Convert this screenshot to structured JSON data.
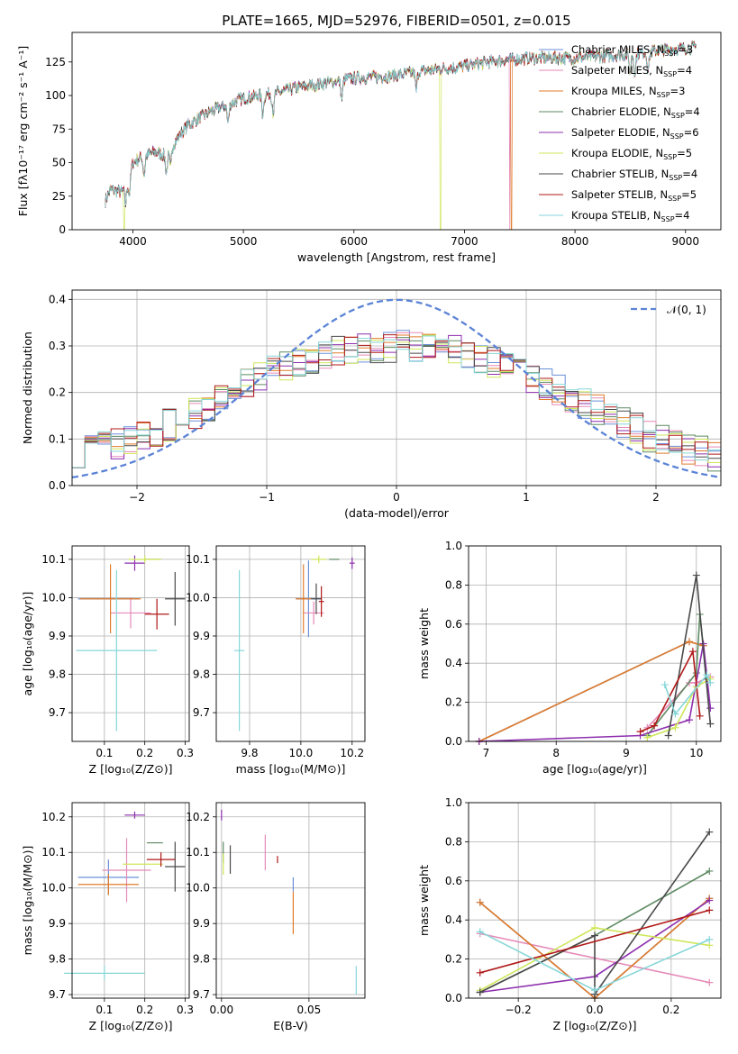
{
  "title": "PLATE=1665, MJD=52976, FIBERID=0501, z=0.015",
  "colors": {
    "Chabrier MILES": "#6a8fd8",
    "Salpeter MILES": "#e58ab8",
    "Kroupa MILES": "#e07b2a",
    "Chabrier ELODIE": "#5e8a62",
    "Salpeter ELODIE": "#8e2fae",
    "Kroupa ELODIE": "#cfe65a",
    "Chabrier STELIB": "#4a4a4a",
    "Salpeter STELIB": "#b01818",
    "Kroupa STELIB": "#86d6d8",
    "normal": "#5b83d6"
  },
  "chart_data": [
    {
      "type": "line",
      "name": "spectrum",
      "xlabel": "wavelength [Angstrom, rest frame]",
      "ylabel": "Flux [fλ10⁻¹⁷ erg cm⁻² s⁻¹ A⁻¹]",
      "xlim": [
        3450,
        9320
      ],
      "ylim": [
        0,
        147
      ],
      "xticks": [
        4000,
        5000,
        6000,
        7000,
        8000,
        9000
      ],
      "yticks": [
        0,
        25,
        50,
        75,
        100,
        125
      ],
      "grid": false,
      "legend": "top-right",
      "continuum": {
        "x": [
          3750,
          3800,
          3900,
          3950,
          4000,
          4100,
          4200,
          4300,
          4400,
          4500,
          4700,
          5000,
          5300,
          5500,
          5800,
          6000,
          6300,
          6600,
          7000,
          7300,
          7600,
          8000,
          8400,
          8800,
          9100
        ],
        "y": [
          22,
          30,
          28,
          35,
          50,
          55,
          58,
          55,
          68,
          78,
          88,
          98,
          102,
          106,
          110,
          113,
          114,
          118,
          122,
          126,
          128,
          128,
          130,
          134,
          136
        ]
      },
      "dropouts": [
        {
          "series": "Kroupa ELODIE",
          "x": 6785
        },
        {
          "series": "Salpeter MILES",
          "x": 7410
        },
        {
          "series": "Kroupa MILES",
          "x": 7425
        },
        {
          "series": "Kroupa ELODIE",
          "x": 3920
        }
      ],
      "series": [
        {
          "name": "Chabrier MILES",
          "label": "Chabrier MILES, N",
          "nssp": "=3"
        },
        {
          "name": "Salpeter MILES",
          "label": "Salpeter MILES, N",
          "nssp": "=4"
        },
        {
          "name": "Kroupa MILES",
          "label": "Kroupa MILES, N",
          "nssp": "=3"
        },
        {
          "name": "Chabrier ELODIE",
          "label": "Chabrier ELODIE, N",
          "nssp": "=4"
        },
        {
          "name": "Salpeter ELODIE",
          "label": "Salpeter ELODIE, N",
          "nssp": "=6"
        },
        {
          "name": "Kroupa ELODIE",
          "label": "Kroupa ELODIE, N",
          "nssp": "=5"
        },
        {
          "name": "Chabrier STELIB",
          "label": "Chabrier STELIB, N",
          "nssp": "=4"
        },
        {
          "name": "Salpeter STELIB",
          "label": "Salpeter STELIB, N",
          "nssp": "=5"
        },
        {
          "name": "Kroupa STELIB",
          "label": "Kroupa STELIB, N",
          "nssp": "=4"
        }
      ],
      "sub": "SSP"
    },
    {
      "type": "line",
      "name": "residual-histogram",
      "xlabel": "(data-model)/error",
      "ylabel": "Normed distribution",
      "xlim": [
        -2.5,
        2.5
      ],
      "ylim": [
        0,
        0.42
      ],
      "xticks": [
        -2,
        -1,
        0,
        1,
        2
      ],
      "yticks": [
        0.0,
        0.1,
        0.2,
        0.3,
        0.4
      ],
      "grid": true,
      "legend": "top-right",
      "normal_label": "𝒩(0, 1)",
      "bin_width": 0.1,
      "envelope": {
        "x": [
          -2.5,
          -2.0,
          -1.5,
          -1.0,
          -0.5,
          0.0,
          0.5,
          1.0,
          1.5,
          2.0,
          2.5
        ],
        "y": [
          0.07,
          0.1,
          0.16,
          0.24,
          0.29,
          0.3,
          0.29,
          0.24,
          0.17,
          0.1,
          0.06
        ]
      }
    },
    {
      "type": "scatter",
      "name": "age-vs-Z",
      "xlabel": "Z [log₁₀(Z/Z⊙)]",
      "ylabel": "age  [log₁₀(age/yr)]",
      "xlim": [
        0.02,
        0.31
      ],
      "ylim": [
        9.625,
        10.135
      ],
      "xticks": [
        0.1,
        0.2,
        0.3
      ],
      "yticks": [
        9.7,
        9.8,
        9.9,
        10.0,
        10.1
      ],
      "grid": true,
      "points": [
        {
          "series": "Chabrier MILES",
          "x": 0.11,
          "y": 9.997,
          "xerr": 0.075,
          "yerr": 0.0
        },
        {
          "series": "Salpeter MILES",
          "x": 0.165,
          "y": 9.96,
          "xerr": 0.05,
          "yerr": 0.04
        },
        {
          "series": "Kroupa MILES",
          "x": 0.115,
          "y": 9.997,
          "xerr": 0.075,
          "yerr": 0.09
        },
        {
          "series": "Chabrier ELODIE",
          "x": 0.22,
          "y": 10.1,
          "xerr": 0.02,
          "yerr": 0.0
        },
        {
          "series": "Salpeter ELODIE",
          "x": 0.175,
          "y": 10.09,
          "xerr": 0.025,
          "yerr": 0.02
        },
        {
          "series": "Kroupa ELODIE",
          "x": 0.2,
          "y": 10.1,
          "xerr": 0.04,
          "yerr": 0.01
        },
        {
          "series": "Chabrier STELIB",
          "x": 0.275,
          "y": 9.997,
          "xerr": 0.025,
          "yerr": 0.07
        },
        {
          "series": "Salpeter STELIB",
          "x": 0.23,
          "y": 9.957,
          "xerr": 0.03,
          "yerr": 0.04
        },
        {
          "series": "Kroupa STELIB",
          "x": 0.13,
          "y": 9.862,
          "xerr": 0.1,
          "yerr": 0.21
        }
      ]
    },
    {
      "type": "scatter",
      "name": "age-vs-mass",
      "xlabel": "mass [log₁₀(M/M⊙)]",
      "ylabel": "",
      "xlim": [
        9.67,
        10.25
      ],
      "ylim": [
        9.625,
        10.135
      ],
      "xticks": [
        9.8,
        10.0,
        10.2
      ],
      "yticks": [
        9.7,
        9.8,
        9.9,
        10.0,
        10.1
      ],
      "grid": true,
      "points": [
        {
          "series": "Chabrier MILES",
          "x": 10.03,
          "y": 9.997,
          "xerr": 0.05,
          "yerr": 0.1
        },
        {
          "series": "Salpeter MILES",
          "x": 10.05,
          "y": 9.96,
          "xerr": 0.04,
          "yerr": 0.03
        },
        {
          "series": "Kroupa MILES",
          "x": 10.01,
          "y": 9.997,
          "xerr": 0.03,
          "yerr": 0.09
        },
        {
          "series": "Chabrier ELODIE",
          "x": 10.13,
          "y": 10.1,
          "xerr": 0.02,
          "yerr": 0.0
        },
        {
          "series": "Salpeter ELODIE",
          "x": 10.2,
          "y": 10.09,
          "xerr": 0.01,
          "yerr": 0.015
        },
        {
          "series": "Kroupa ELODIE",
          "x": 10.07,
          "y": 10.1,
          "xerr": 0.03,
          "yerr": 0.01
        },
        {
          "series": "Chabrier STELIB",
          "x": 10.06,
          "y": 9.997,
          "xerr": 0.02,
          "yerr": 0.04
        },
        {
          "series": "Salpeter STELIB",
          "x": 10.08,
          "y": 9.99,
          "xerr": 0.01,
          "yerr": 0.04
        },
        {
          "series": "Kroupa STELIB",
          "x": 9.76,
          "y": 9.862,
          "xerr": 0.02,
          "yerr": 0.21
        }
      ]
    },
    {
      "type": "line",
      "name": "mass-weight-vs-age",
      "xlabel": "age  [log₁₀(age/yr)]",
      "ylabel": "mass weight",
      "xlim": [
        6.75,
        10.35
      ],
      "ylim": [
        0,
        1.0
      ],
      "xticks": [
        7,
        8,
        9,
        10
      ],
      "yticks": [
        0.0,
        0.2,
        0.4,
        0.6,
        0.8,
        1.0
      ],
      "grid": true,
      "series": [
        {
          "name": "Chabrier MILES",
          "x": [
            6.9,
            9.9,
            10.1
          ],
          "y": [
            0.0,
            0.51,
            0.49
          ]
        },
        {
          "name": "Salpeter MILES",
          "x": [
            9.3,
            9.9,
            10.0,
            10.2
          ],
          "y": [
            0.07,
            0.3,
            0.3,
            0.33
          ]
        },
        {
          "name": "Kroupa MILES",
          "x": [
            6.9,
            9.9,
            10.1
          ],
          "y": [
            0.0,
            0.51,
            0.49
          ]
        },
        {
          "name": "Chabrier ELODIE",
          "x": [
            9.3,
            10.0,
            10.05,
            10.15
          ],
          "y": [
            0.03,
            0.35,
            0.65,
            0.32
          ]
        },
        {
          "name": "Salpeter ELODIE",
          "x": [
            6.9,
            9.2,
            9.9,
            10.1,
            10.2
          ],
          "y": [
            0.0,
            0.03,
            0.11,
            0.5,
            0.17
          ]
        },
        {
          "name": "Kroupa ELODIE",
          "x": [
            9.3,
            9.7,
            10.0,
            10.2
          ],
          "y": [
            0.02,
            0.07,
            0.28,
            0.32
          ]
        },
        {
          "name": "Chabrier STELIB",
          "x": [
            9.6,
            10.0,
            10.2
          ],
          "y": [
            0.03,
            0.85,
            0.09
          ]
        },
        {
          "name": "Salpeter STELIB",
          "x": [
            9.2,
            9.4,
            9.95,
            10.05
          ],
          "y": [
            0.05,
            0.08,
            0.46,
            0.13
          ]
        },
        {
          "name": "Kroupa STELIB",
          "x": [
            9.55,
            9.7,
            10.15,
            10.2
          ],
          "y": [
            0.29,
            0.14,
            0.34,
            0.3
          ]
        }
      ]
    },
    {
      "type": "scatter",
      "name": "mass-vs-Z",
      "xlabel": "Z [log₁₀(Z/Z⊙)]",
      "ylabel": "mass [log₁₀(M/M⊙)]",
      "xlim": [
        0.02,
        0.31
      ],
      "ylim": [
        9.69,
        10.24
      ],
      "xticks": [
        0.1,
        0.2,
        0.3
      ],
      "yticks": [
        9.7,
        9.8,
        9.9,
        10.0,
        10.1,
        10.2
      ],
      "grid": true,
      "points": [
        {
          "series": "Chabrier MILES",
          "x": 0.11,
          "y": 10.03,
          "xerr": 0.075,
          "yerr": 0.05
        },
        {
          "series": "Salpeter MILES",
          "x": 0.155,
          "y": 10.05,
          "xerr": 0.06,
          "yerr": 0.09
        },
        {
          "series": "Kroupa MILES",
          "x": 0.11,
          "y": 10.01,
          "xerr": 0.075,
          "yerr": 0.03
        },
        {
          "series": "Chabrier ELODIE",
          "x": 0.225,
          "y": 10.127,
          "xerr": 0.02,
          "yerr": 0.0
        },
        {
          "series": "Salpeter ELODIE",
          "x": 0.175,
          "y": 10.205,
          "xerr": 0.025,
          "yerr": 0.01
        },
        {
          "series": "Kroupa ELODIE",
          "x": 0.195,
          "y": 10.067,
          "xerr": 0.05,
          "yerr": 0.0
        },
        {
          "series": "Chabrier STELIB",
          "x": 0.275,
          "y": 10.06,
          "xerr": 0.025,
          "yerr": 0.07
        },
        {
          "series": "Salpeter STELIB",
          "x": 0.24,
          "y": 10.08,
          "xerr": 0.035,
          "yerr": 0.02
        },
        {
          "series": "Kroupa STELIB",
          "x": 0.1,
          "y": 9.76,
          "xerr": 0.1,
          "yerr": 0.02
        }
      ]
    },
    {
      "type": "scatter",
      "name": "mass-vs-ebv",
      "xlabel": "E(B-V)",
      "ylabel": "",
      "xlim": [
        -0.003,
        0.082
      ],
      "ylim": [
        9.69,
        10.24
      ],
      "xticks": [
        0.0,
        0.05
      ],
      "yticks": [
        9.7,
        9.8,
        9.9,
        10.0,
        10.1,
        10.2
      ],
      "grid": true,
      "points": [
        {
          "series": "Chabrier MILES",
          "x": 0.041,
          "y": 10.01,
          "xerr": 0.0,
          "yerr": 0.02
        },
        {
          "series": "Salpeter MILES",
          "x": 0.025,
          "y": 10.1,
          "xerr": 0.0,
          "yerr": 0.05
        },
        {
          "series": "Kroupa MILES",
          "x": 0.041,
          "y": 9.93,
          "xerr": 0.0,
          "yerr": 0.06
        },
        {
          "series": "Chabrier ELODIE",
          "x": 0.001,
          "y": 10.1,
          "xerr": 0.0,
          "yerr": 0.03
        },
        {
          "series": "Salpeter ELODIE",
          "x": 0.0,
          "y": 10.205,
          "xerr": 0.0,
          "yerr": 0.015
        },
        {
          "series": "Kroupa ELODIE",
          "x": 0.001,
          "y": 10.067,
          "xerr": 0.0,
          "yerr": 0.03
        },
        {
          "series": "Chabrier STELIB",
          "x": 0.005,
          "y": 10.08,
          "xerr": 0.0,
          "yerr": 0.04
        },
        {
          "series": "Salpeter STELIB",
          "x": 0.032,
          "y": 10.08,
          "xerr": 0.0,
          "yerr": 0.01
        },
        {
          "series": "Kroupa STELIB",
          "x": 0.077,
          "y": 9.74,
          "xerr": 0.0,
          "yerr": 0.04
        }
      ]
    },
    {
      "type": "line",
      "name": "mass-weight-vs-Z",
      "xlabel": "Z [log₁₀(Z/Z⊙)]",
      "ylabel": "mass weight",
      "xlim": [
        -0.33,
        0.33
      ],
      "ylim": [
        0,
        1.0
      ],
      "xticks": [
        -0.2,
        0.0,
        0.2
      ],
      "yticks": [
        0.0,
        0.2,
        0.4,
        0.6,
        0.8,
        1.0
      ],
      "grid": true,
      "series": [
        {
          "name": "Chabrier MILES",
          "x": [
            -0.3,
            0.0,
            0.3
          ],
          "y": [
            0.49,
            0.0,
            0.51
          ]
        },
        {
          "name": "Salpeter MILES",
          "x": [
            -0.3,
            0.3
          ],
          "y": [
            0.33,
            0.08
          ]
        },
        {
          "name": "Kroupa MILES",
          "x": [
            -0.3,
            0.0,
            0.3
          ],
          "y": [
            0.49,
            0.0,
            0.51
          ]
        },
        {
          "name": "Chabrier ELODIE",
          "x": [
            -0.3,
            0.0,
            0.3
          ],
          "y": [
            0.03,
            0.32,
            0.65
          ]
        },
        {
          "name": "Salpeter ELODIE",
          "x": [
            -0.3,
            0.0,
            0.3
          ],
          "y": [
            0.03,
            0.11,
            0.5
          ]
        },
        {
          "name": "Kroupa ELODIE",
          "x": [
            -0.3,
            0.0,
            0.3
          ],
          "y": [
            0.04,
            0.36,
            0.27
          ]
        },
        {
          "name": "Chabrier STELIB",
          "x": [
            -0.3,
            0.0,
            0.0,
            0.3
          ],
          "y": [
            0.03,
            0.32,
            0.02,
            0.85
          ]
        },
        {
          "name": "Salpeter STELIB",
          "x": [
            -0.3,
            0.3
          ],
          "y": [
            0.13,
            0.45
          ]
        },
        {
          "name": "Kroupa STELIB",
          "x": [
            -0.3,
            0.0,
            0.3
          ],
          "y": [
            0.34,
            0.04,
            0.3
          ]
        }
      ]
    }
  ]
}
